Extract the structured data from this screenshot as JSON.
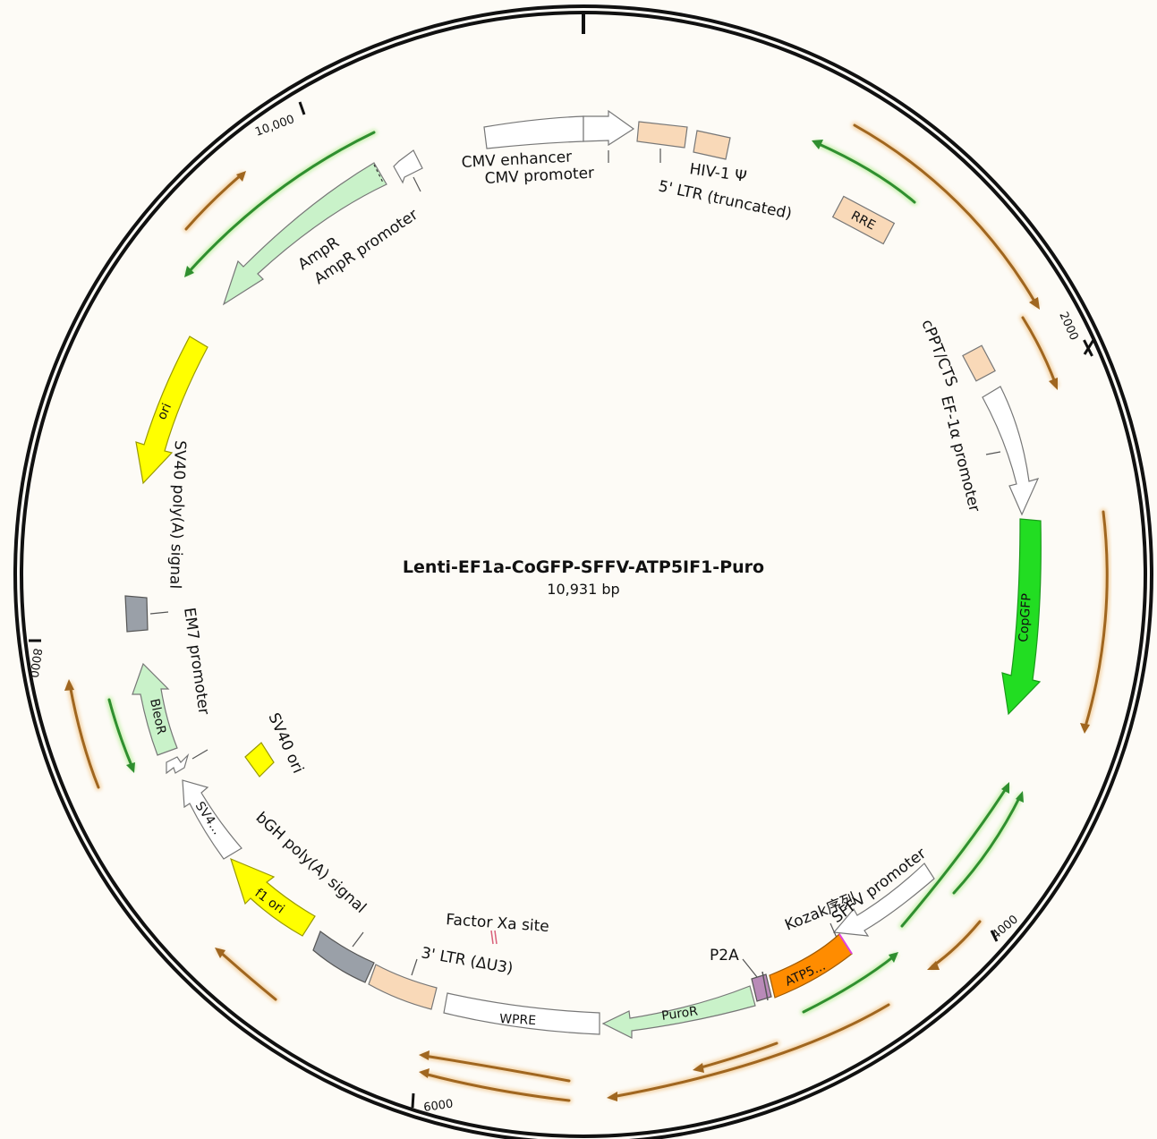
{
  "plasmid": {
    "name": "Lenti-EF1a-CoGFP-SFFV-ATP5IF1-Puro",
    "size_label": "10,931 bp"
  },
  "ticks": [
    "2000",
    "4000",
    "6000",
    "8000",
    "10,000"
  ],
  "features": [
    {
      "id": "cmv-enhancer",
      "color": "#ffffff"
    },
    {
      "id": "cmv-promoter",
      "color": "#ffffff"
    },
    {
      "id": "ltr5",
      "color": "#f9d9b8"
    },
    {
      "id": "hiv-psi",
      "color": "#f9d9b8"
    },
    {
      "id": "rre",
      "label": "RRE",
      "color": "#f9d9b8"
    },
    {
      "id": "cppt",
      "color": "#f9d9b8"
    },
    {
      "id": "ef1a",
      "color": "#ffffff"
    },
    {
      "id": "copgfp",
      "label": "CopGFP",
      "color": "#22dd22"
    },
    {
      "id": "sffv",
      "color": "#ffffff"
    },
    {
      "id": "atp5",
      "label": "ATP5...",
      "color": "#ff8c00"
    },
    {
      "id": "p2a",
      "color": "#b98ab8"
    },
    {
      "id": "puror",
      "label": "PuroR",
      "color": "#c9f2c9"
    },
    {
      "id": "wpre",
      "label": "WPRE",
      "color": "#ffffff"
    },
    {
      "id": "ltr3",
      "color": "#f9d9b8"
    },
    {
      "id": "bgh",
      "color": "#9aa0a8"
    },
    {
      "id": "f1ori",
      "label": "f1 ori",
      "color": "#ffff00"
    },
    {
      "id": "sv4",
      "label": "SV4...",
      "color": "#ffffff"
    },
    {
      "id": "em7",
      "color": "#ffffff"
    },
    {
      "id": "bleor",
      "label": "BleoR",
      "color": "#c9f2c9"
    },
    {
      "id": "sv40pa",
      "color": "#9aa0a8"
    },
    {
      "id": "sv40ori",
      "color": "#ffff00"
    },
    {
      "id": "ori",
      "label": "ori",
      "color": "#ffff00"
    },
    {
      "id": "ampr",
      "color": "#c9f2c9"
    },
    {
      "id": "ampr-promoter",
      "color": "#ffffff"
    }
  ],
  "labels": {
    "cmv_enhancer": "CMV enhancer",
    "cmv_promoter": "CMV promoter",
    "hiv_psi": "HIV-1 Ψ",
    "ltr5": "5' LTR (truncated)",
    "cppt": "cPPT/CTS",
    "ef1a": "EF-1α  promoter",
    "sffv": "SFFV promoter",
    "kozak": "Kozak序列",
    "p2a": "P2A",
    "factor_xa": "Factor Xa site",
    "ltr3": "3' LTR (ΔU3)",
    "bgh": "bGH poly(A) signal",
    "sv40ori": "SV40 ori",
    "em7": "EM7 promoter",
    "sv40pa": "SV40 poly(A) signal",
    "ampr": "AmpR",
    "ampr_promoter": "AmpR promoter"
  },
  "colors": {
    "primer_orange": "#a0661f",
    "primer_green": "#2f8f2f",
    "backbone": "#111111"
  }
}
